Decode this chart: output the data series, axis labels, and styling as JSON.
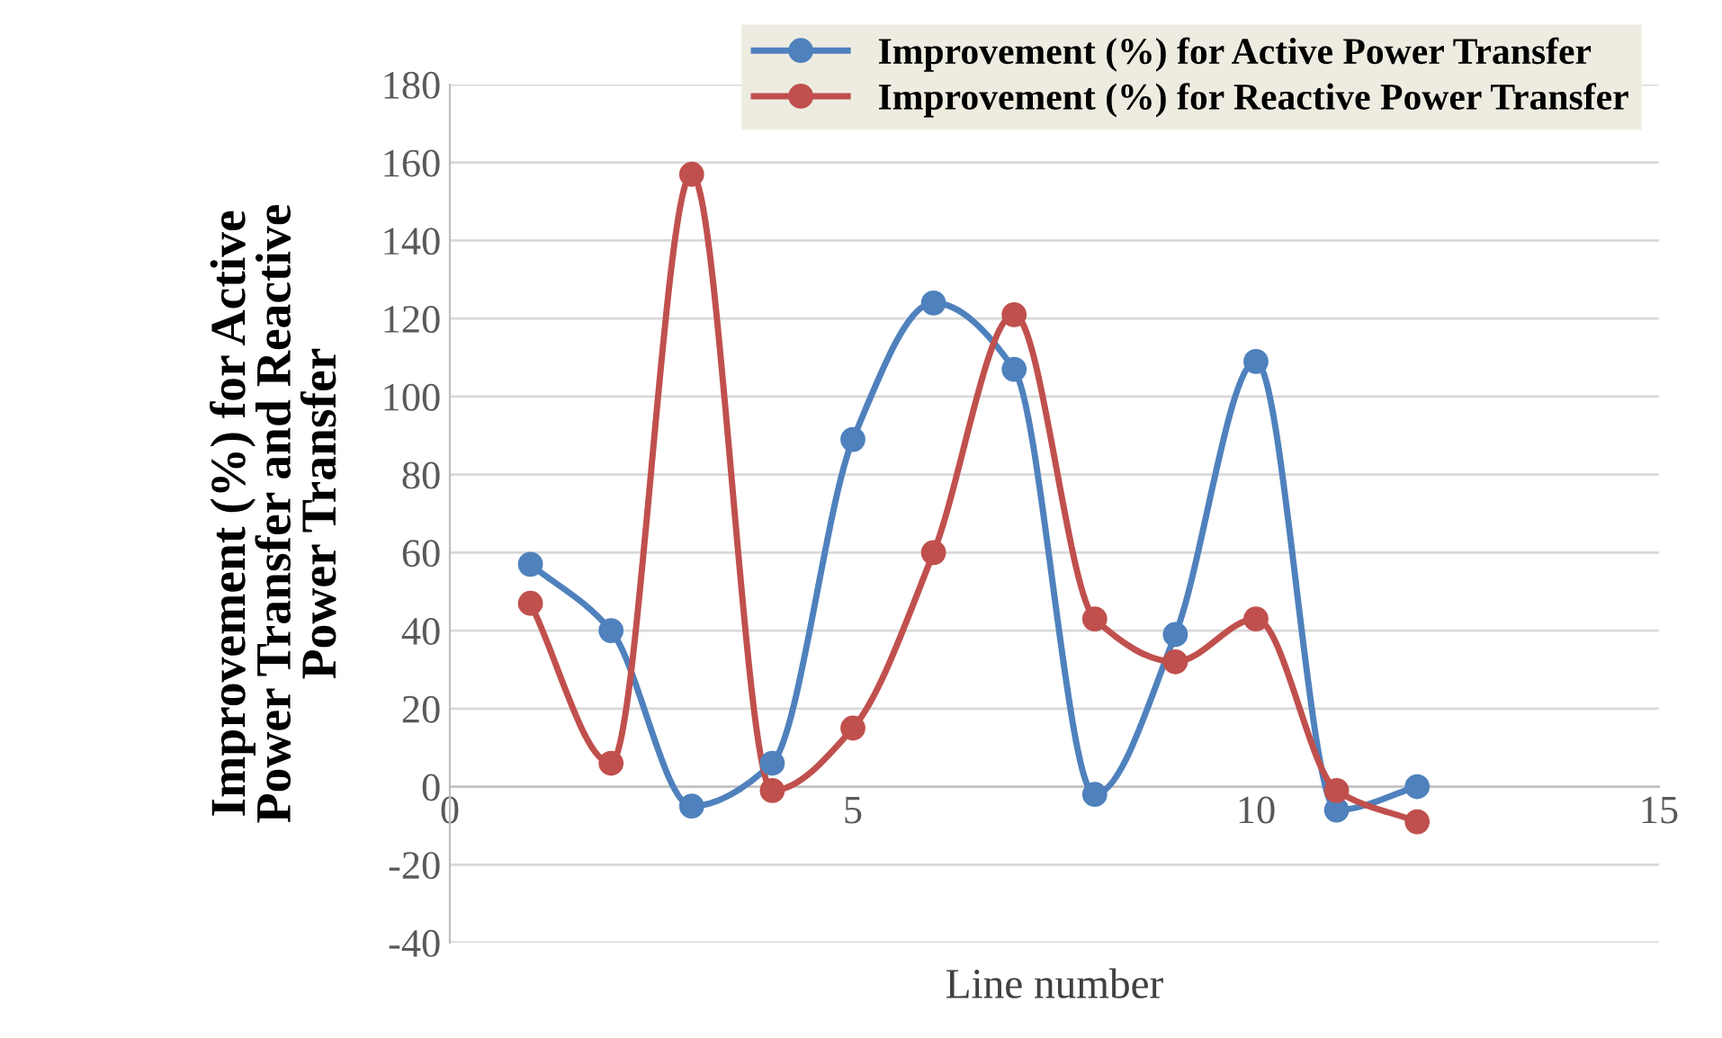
{
  "chart_data": {
    "type": "line",
    "xlabel": "Line number",
    "ylabel": "Improvement (%) for Active\nPower Transfer and Reactive\nPower Transfer",
    "x": [
      1,
      2,
      3,
      4,
      5,
      6,
      7,
      8,
      9,
      10,
      11,
      12
    ],
    "series": [
      {
        "name": "Improvement (%) for Active Power Transfer",
        "color": "#4f81bd",
        "values": [
          57,
          40,
          -5,
          6,
          89,
          124,
          107,
          -2,
          39,
          109,
          -6,
          0
        ]
      },
      {
        "name": "Improvement (%) for Reactive Power Transfer",
        "color": "#c0504d",
        "values": [
          47,
          6,
          157,
          -1,
          15,
          60,
          121,
          43,
          32,
          43,
          -1,
          -9
        ]
      }
    ],
    "xlim": [
      0,
      15
    ],
    "xticks": [
      0,
      5,
      10,
      15
    ],
    "ylim": [
      -40,
      180
    ],
    "yticks": [
      -40,
      -20,
      0,
      20,
      40,
      60,
      80,
      100,
      120,
      140,
      160,
      180
    ],
    "grid": "y",
    "legend": "top right",
    "marker": "circle",
    "line_style": "solid"
  }
}
